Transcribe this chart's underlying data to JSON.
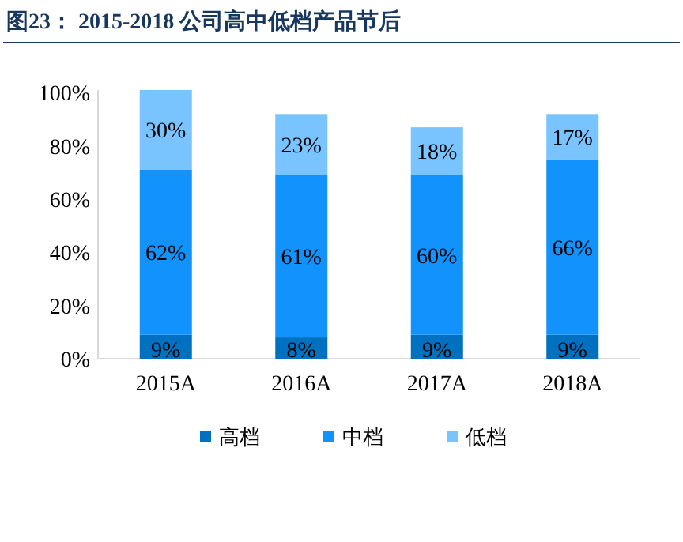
{
  "chart_data": {
    "type": "bar",
    "stacked": true,
    "title": "图23：  2015-2018 公司高中低档产品节后",
    "categories": [
      "2015A",
      "2016A",
      "2017A",
      "2018A"
    ],
    "series": [
      {
        "name": "高档",
        "color": "#0070c0",
        "values": [
          9,
          8,
          9,
          9
        ],
        "value_labels": [
          "9%",
          "8%",
          "9%",
          "9%"
        ]
      },
      {
        "name": "中档",
        "color": "#1192fc",
        "values": [
          62,
          61,
          60,
          66
        ],
        "value_labels": [
          "62%",
          "61%",
          "60%",
          "66%"
        ]
      },
      {
        "name": "低档",
        "color": "#79c3ff",
        "values": [
          30,
          23,
          18,
          17
        ],
        "value_labels": [
          "30%",
          "23%",
          "18%",
          "17%"
        ]
      }
    ],
    "ylim": [
      0,
      101
    ],
    "yticks": [
      {
        "value": 0,
        "label": "0%"
      },
      {
        "value": 20,
        "label": "20%"
      },
      {
        "value": 40,
        "label": "40%"
      },
      {
        "value": 60,
        "label": "60%"
      },
      {
        "value": 80,
        "label": "80%"
      },
      {
        "value": 100,
        "label": "100%"
      }
    ],
    "grid": false,
    "legend": "bottom"
  }
}
